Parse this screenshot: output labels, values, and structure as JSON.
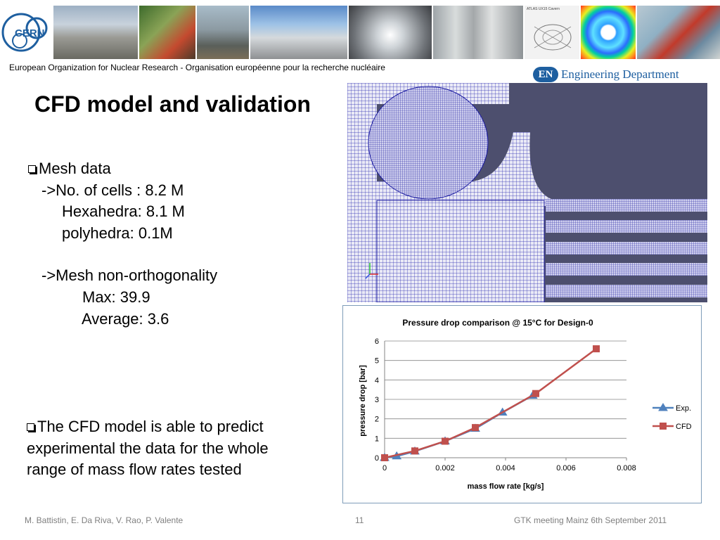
{
  "header": {
    "logo_text": "CERN",
    "organization": "European Organization for Nuclear Research - Organisation européenne pour la recherche nucléaire",
    "department_badge": "EN",
    "department": "Engineering Department",
    "photo_caption": "ATLAS UX15 Cavern"
  },
  "slide": {
    "title": "CFD model and validation",
    "mesh": {
      "heading": "Mesh data",
      "cells": "->No. of cells : 8.2 M",
      "hexahedra": "Hexahedra:  8.1 M",
      "polyhedra": "polyhedra:    0.1M",
      "non_orth": "->Mesh non-orthogonality",
      "max": "Max: 39.9",
      "average": "Average: 3.6"
    },
    "conclusion": "The CFD model is able to predict experimental the data for the whole range of  mass flow rates tested"
  },
  "chart_data": {
    "type": "line",
    "title": "Pressure drop comparison @ 15°C for Design-0",
    "xlabel": "mass flow rate [kg/s]",
    "ylabel": "pressure drop [bar]",
    "xlim": [
      0,
      0.008
    ],
    "ylim": [
      0,
      6
    ],
    "x_ticks": [
      "0",
      "0.002",
      "0.004",
      "0.006",
      "0.008"
    ],
    "y_ticks": [
      "0",
      "1",
      "2",
      "3",
      "4",
      "5",
      "6"
    ],
    "grid": true,
    "legend_position": "right",
    "series": [
      {
        "name": "Exp.",
        "marker": "triangle",
        "color": "#4f81bd",
        "x": [
          0,
          0.0004,
          0.001,
          0.002,
          0.003,
          0.0039,
          0.0049
        ],
        "y": [
          0.0,
          0.08,
          0.33,
          0.85,
          1.5,
          2.33,
          3.2
        ]
      },
      {
        "name": "CFD",
        "marker": "square",
        "color": "#c0504d",
        "x": [
          0,
          0.001,
          0.002,
          0.003,
          0.005,
          0.007
        ],
        "y": [
          0.0,
          0.35,
          0.85,
          1.55,
          3.3,
          5.6
        ]
      }
    ]
  },
  "footer": {
    "authors": "M. Battistin, E. Da Riva, V. Rao, P. Valente",
    "page": "11",
    "event": "GTK meeting Mainz 6th September 2011"
  }
}
